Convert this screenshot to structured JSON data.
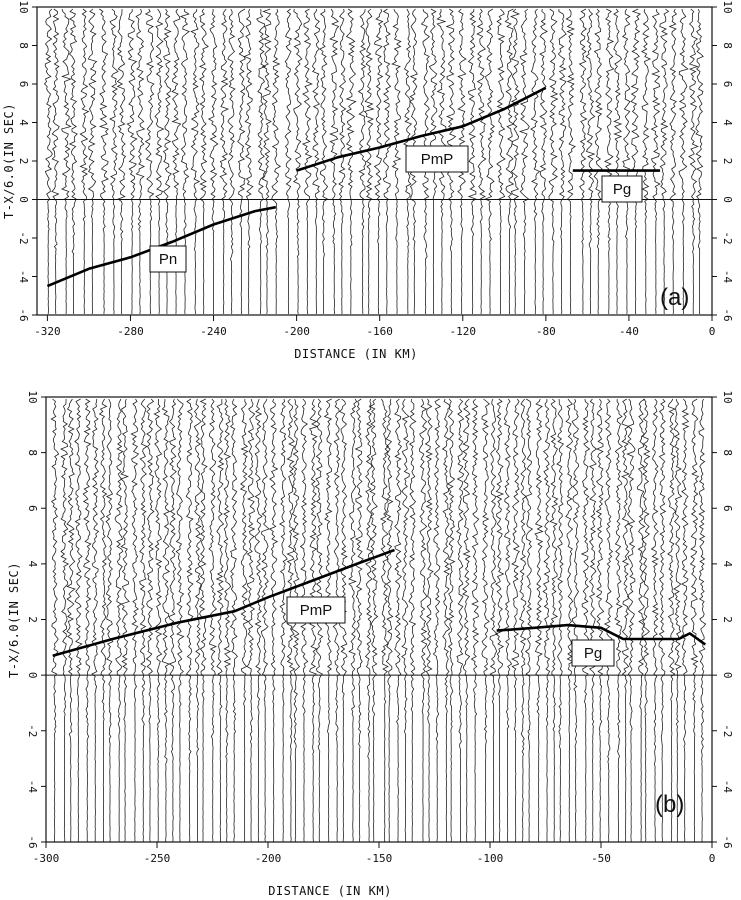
{
  "chart_data": [
    {
      "type": "line",
      "panel_label": "(a)",
      "xlabel": "DISTANCE (IN KM)",
      "ylabel": "T-X/6.0(IN SEC)",
      "xlim": [
        -325,
        0
      ],
      "ylim": [
        -6,
        10
      ],
      "xticks": [
        -320,
        -280,
        -240,
        -200,
        -160,
        -120,
        -80,
        -40,
        0
      ],
      "yticks": [
        -6,
        -4,
        -2,
        0,
        2,
        4,
        6,
        8,
        10
      ],
      "phases": [
        {
          "name": "Pn",
          "x": [
            -320,
            -300,
            -280,
            -260,
            -240,
            -220,
            -210
          ],
          "y": [
            -4.5,
            -3.6,
            -3.0,
            -2.2,
            -1.3,
            -0.6,
            -0.4
          ]
        },
        {
          "name": "PmP",
          "x": [
            -200,
            -180,
            -160,
            -140,
            -120,
            -100,
            -80
          ],
          "y": [
            1.5,
            2.2,
            2.7,
            3.3,
            3.8,
            4.7,
            5.8
          ]
        },
        {
          "name": "Pg",
          "x": [
            -67,
            -25
          ],
          "y": [
            1.5,
            1.5
          ]
        }
      ]
    },
    {
      "type": "line",
      "panel_label": "(b)",
      "xlabel": "DISTANCE (IN KM)",
      "ylabel": "T-X/6.0(IN SEC)",
      "xlim": [
        -300,
        0
      ],
      "ylim": [
        -6,
        10
      ],
      "xticks": [
        -300,
        -250,
        -200,
        -150,
        -100,
        -50,
        0
      ],
      "yticks": [
        -6,
        -4,
        -2,
        0,
        2,
        4,
        6,
        8,
        10
      ],
      "phases": [
        {
          "name": "PmP",
          "x": [
            -297,
            -270,
            -240,
            -215,
            -200,
            -180,
            -160,
            -143
          ],
          "y": [
            0.7,
            1.3,
            1.9,
            2.3,
            2.8,
            3.4,
            4.0,
            4.5
          ]
        },
        {
          "name": "Pg",
          "x": [
            -97,
            -80,
            -65,
            -50,
            -40,
            -30,
            -15,
            -10,
            -3
          ],
          "y": [
            1.6,
            1.7,
            1.8,
            1.7,
            1.3,
            1.3,
            1.3,
            1.5,
            1.1
          ]
        }
      ]
    }
  ]
}
